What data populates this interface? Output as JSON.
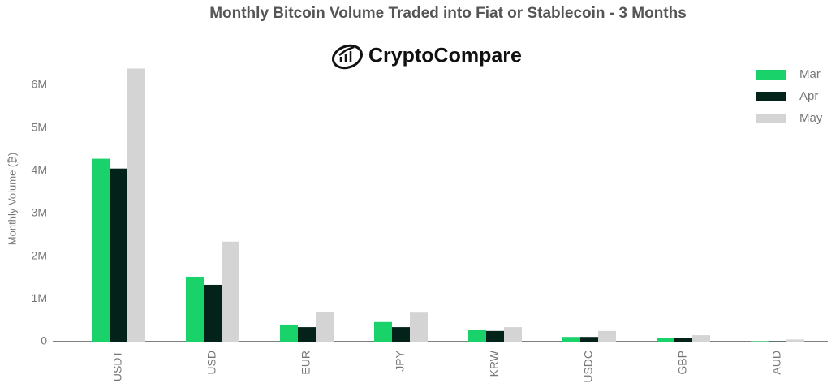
{
  "chart_data": {
    "type": "bar",
    "title": "Monthly Bitcoin Volume Traded into Fiat or Stablecoin - 3 Months",
    "brand": "CryptoCompare",
    "y_label": "Monthly Volume (₿)",
    "categories": [
      "USDT",
      "USD",
      "EUR",
      "JPY",
      "KRW",
      "USDC",
      "GBP",
      "AUD"
    ],
    "series": [
      {
        "name": "Mar",
        "color": "#19d36a",
        "values": [
          4.28,
          1.52,
          0.4,
          0.46,
          0.27,
          0.11,
          0.08,
          0.01
        ]
      },
      {
        "name": "Apr",
        "color": "#03221a",
        "values": [
          4.05,
          1.33,
          0.34,
          0.34,
          0.25,
          0.11,
          0.08,
          0.01
        ]
      },
      {
        "name": "May",
        "color": "#d4d4d4",
        "values": [
          6.39,
          2.34,
          0.7,
          0.68,
          0.34,
          0.25,
          0.15,
          0.05
        ]
      }
    ],
    "ylim": [
      0,
      6.3
    ],
    "yticks": [
      0,
      {
        "value": 1,
        "label": "1M"
      },
      {
        "value": 2,
        "label": "2M"
      },
      {
        "value": 3,
        "label": "3M"
      },
      {
        "value": 4,
        "label": "4M"
      },
      {
        "value": 5,
        "label": "5M"
      },
      {
        "value": 6,
        "label": "6M"
      }
    ],
    "legend": "top-right"
  }
}
